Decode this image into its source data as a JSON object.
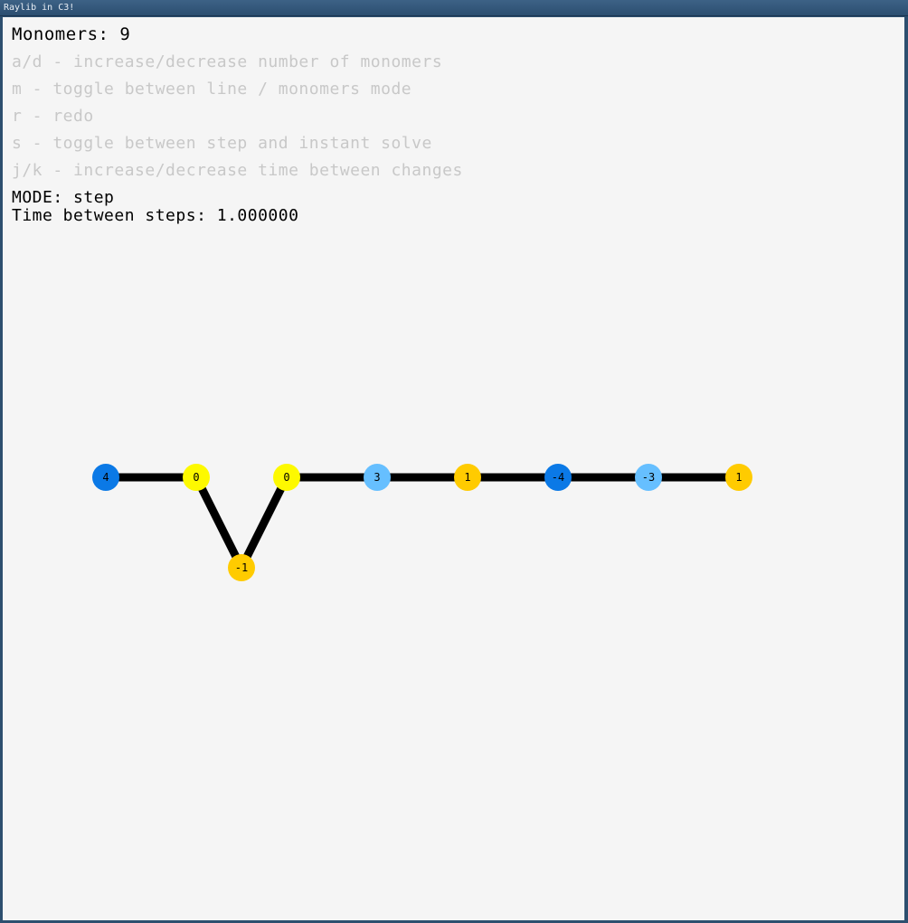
{
  "window": {
    "title": "Raylib in C3!"
  },
  "hud": {
    "monomers_line": "Monomers: 9",
    "help": [
      "a/d - increase/decrease number of monomers",
      "m - toggle between line / monomers mode",
      "r - redo",
      "s - toggle between step and instant solve",
      "j/k - increase/decrease time between changes"
    ],
    "mode_line": "MODE: step",
    "time_line": "Time between steps: 1.000000"
  },
  "colors": {
    "dark_blue": "#0b79e6",
    "light_blue": "#66bfff",
    "yellow": "#fdf900",
    "gold": "#ffcb00",
    "bond": "#000000",
    "background": "#f5f5f5"
  },
  "chain": {
    "grid_unit": 100,
    "monomers": [
      {
        "label": "4",
        "color": "dark_blue",
        "gx": 0,
        "gy": 0
      },
      {
        "label": "0",
        "color": "yellow",
        "gx": 1,
        "gy": 0
      },
      {
        "label": "-1",
        "color": "gold",
        "gx": 1.5,
        "gy": 1
      },
      {
        "label": "0",
        "color": "yellow",
        "gx": 2,
        "gy": 0
      },
      {
        "label": "3",
        "color": "light_blue",
        "gx": 3,
        "gy": 0
      },
      {
        "label": "1",
        "color": "gold",
        "gx": 4,
        "gy": 0
      },
      {
        "label": "-4",
        "color": "dark_blue",
        "gx": 5,
        "gy": 0
      },
      {
        "label": "-3",
        "color": "light_blue",
        "gx": 6,
        "gy": 0
      },
      {
        "label": "1",
        "color": "gold",
        "gx": 7,
        "gy": 0
      }
    ]
  }
}
